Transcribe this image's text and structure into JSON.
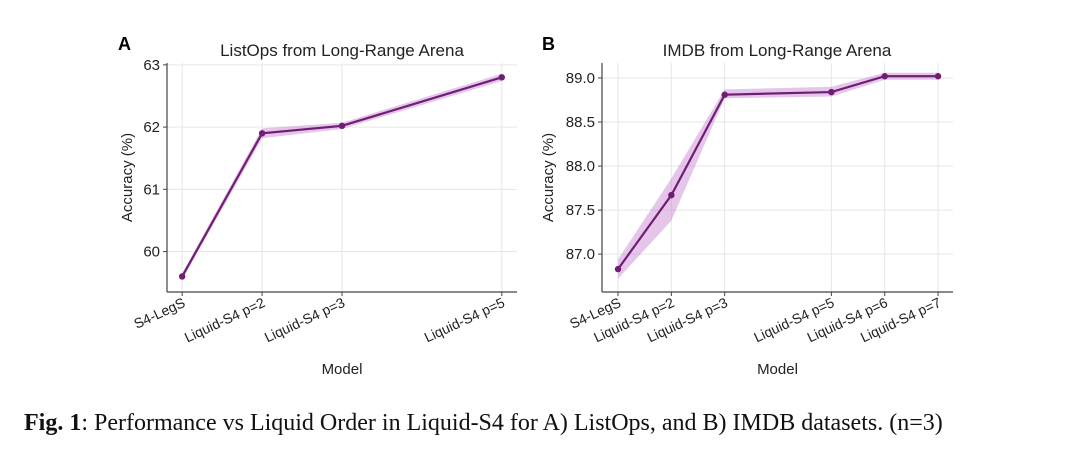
{
  "chart_data": [
    {
      "panel_label": "A",
      "type": "line",
      "title": "ListOps from Long-Range Arena",
      "xlabel": "Model",
      "ylabel": "Accuracy (%)",
      "categories": [
        "S4-LegS",
        "Liquid-S4 p=2",
        "Liquid-S4 p=3",
        "Liquid-S4 p=5"
      ],
      "x": [
        1,
        2,
        3,
        5
      ],
      "values": [
        59.6,
        61.9,
        62.02,
        62.8
      ],
      "band_lower": [
        59.55,
        61.82,
        61.97,
        62.74
      ],
      "band_upper": [
        59.65,
        61.98,
        62.07,
        62.86
      ],
      "yticks": [
        60,
        61,
        62,
        63
      ],
      "ytick_labels": [
        "60",
        "61",
        "62",
        "63"
      ],
      "ylim": [
        59.35,
        63.03
      ],
      "xlim": [
        0.81,
        5.19
      ],
      "grid": true,
      "line_color": "#6e1f73",
      "band_color": "#c77fd0"
    },
    {
      "panel_label": "B",
      "type": "line",
      "title": "IMDB from Long-Range Arena",
      "xlabel": "Model",
      "ylabel": "Accuracy (%)",
      "categories": [
        "S4-LegS",
        "Liquid-S4 p=2",
        "Liquid-S4 p=3",
        "Liquid-S4 p=5",
        "Liquid-S4 p=6",
        "Liquid-S4 p=7"
      ],
      "x": [
        1,
        2,
        3,
        5,
        6,
        7
      ],
      "values": [
        86.83,
        87.67,
        88.81,
        88.84,
        89.02,
        89.02
      ],
      "band_lower": [
        86.72,
        87.38,
        88.77,
        88.79,
        88.98,
        88.98
      ],
      "band_upper": [
        86.94,
        87.86,
        88.87,
        88.9,
        89.06,
        89.06
      ],
      "yticks": [
        87.0,
        87.5,
        88.0,
        88.5,
        89.0
      ],
      "ytick_labels": [
        "87.0",
        "87.5",
        "88.0",
        "88.5",
        "89.0"
      ],
      "ylim": [
        86.57,
        89.17
      ],
      "xlim": [
        0.7,
        7.28
      ],
      "grid": true,
      "line_color": "#6e1f73",
      "band_color": "#c77fd0"
    }
  ],
  "caption": {
    "label": "Fig. 1",
    "text": ": Performance vs Liquid Order in Liquid-S4 for A) ListOps, and B) IMDB datasets. (n=3)"
  }
}
